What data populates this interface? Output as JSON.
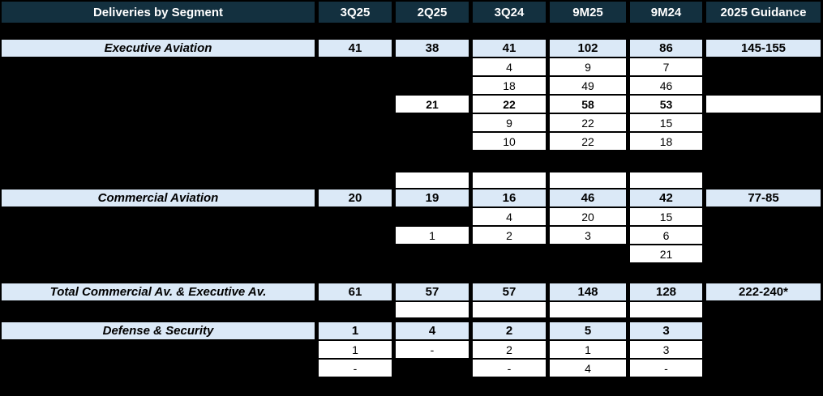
{
  "palette": {
    "page_background": "#000000",
    "header_background": "#13303F",
    "header_text": "#FFFFFF",
    "section_row_background": "#DBE9F7",
    "detail_cell_background": "#FFFFFF",
    "cell_text": "#000000"
  },
  "rows": {
    "header": {
      "c0": "Deliveries by Segment",
      "c1": "3Q25",
      "c2": "2Q25",
      "c3": "3Q24",
      "c4": "9M25",
      "c5": "9M24",
      "c6": "2025 Guidance"
    },
    "executive": {
      "c0": "Executive Aviation",
      "c1": "41",
      "c2": "38",
      "c3": "41",
      "c4": "102",
      "c5": "86",
      "c6": "145-155"
    },
    "exec_r1": {
      "c3": "4",
      "c4": "9",
      "c5": "7"
    },
    "exec_r2": {
      "c3": "18",
      "c4": "49",
      "c5": "46"
    },
    "exec_r3": {
      "c2": "21",
      "c3": "22",
      "c4": "58",
      "c5": "53",
      "c6": ""
    },
    "exec_r4": {
      "c3": "9",
      "c4": "22",
      "c5": "15"
    },
    "exec_r5": {
      "c3": "10",
      "c4": "22",
      "c5": "18"
    },
    "pre_commercial_empty": {
      "c2": "",
      "c3": "",
      "c4": "",
      "c5": ""
    },
    "commercial": {
      "c0": "Commercial Aviation",
      "c1": "20",
      "c2": "19",
      "c3": "16",
      "c4": "46",
      "c5": "42",
      "c6": "77-85"
    },
    "comm_r1": {
      "c3": "4",
      "c4": "20",
      "c5": "15"
    },
    "comm_r2": {
      "c2": "1",
      "c3": "2",
      "c4": "3",
      "c5": "6"
    },
    "comm_r3": {
      "c5": "21"
    },
    "total": {
      "c0": "Total Commercial Av. & Executive Av.",
      "c1": "61",
      "c2": "57",
      "c3": "57",
      "c4": "148",
      "c5": "128",
      "c6": "222-240*"
    },
    "post_total_empty": {
      "c2": "",
      "c3": "",
      "c4": "",
      "c5": ""
    },
    "defense": {
      "c0": "Defense & Security",
      "c1": "1",
      "c2": "4",
      "c3": "2",
      "c4": "5",
      "c5": "3"
    },
    "def_r1": {
      "c1": "1",
      "c2": "-",
      "c3": "2",
      "c4": "1",
      "c5": "3"
    },
    "def_r2": {
      "c1": "-",
      "c3": "-",
      "c4": "4",
      "c5": "-"
    }
  },
  "chart_data": {
    "type": "table",
    "title": "Deliveries by Segment",
    "columns": [
      "Deliveries by Segment",
      "3Q25",
      "2Q25",
      "3Q24",
      "9M25",
      "9M24",
      "2025 Guidance"
    ],
    "rows": [
      [
        "Executive Aviation",
        "41",
        "38",
        "41",
        "102",
        "86",
        "145-155"
      ],
      [
        "",
        null,
        null,
        "4",
        "9",
        "7",
        null
      ],
      [
        "",
        null,
        null,
        "18",
        "49",
        "46",
        null
      ],
      [
        "",
        null,
        "21",
        "22",
        "58",
        "53",
        ""
      ],
      [
        "",
        null,
        null,
        "9",
        "22",
        "15",
        null
      ],
      [
        "",
        null,
        null,
        "10",
        "22",
        "18",
        null
      ],
      [
        "",
        null,
        "",
        "",
        "",
        "",
        null
      ],
      [
        "Commercial Aviation",
        "20",
        "19",
        "16",
        "46",
        "42",
        "77-85"
      ],
      [
        "",
        null,
        null,
        "4",
        "20",
        "15",
        null
      ],
      [
        "",
        null,
        "1",
        "2",
        "3",
        "6",
        null
      ],
      [
        "",
        null,
        null,
        null,
        null,
        "21",
        null
      ],
      [
        "Total Commercial Av. & Executive Av.",
        "61",
        "57",
        "57",
        "148",
        "128",
        "222-240*"
      ],
      [
        "",
        null,
        "",
        "",
        "",
        "",
        null
      ],
      [
        "Defense & Security",
        "1",
        "4",
        "2",
        "5",
        "3",
        null
      ],
      [
        "",
        "1",
        "-",
        "2",
        "1",
        "3",
        null
      ],
      [
        "",
        "-",
        null,
        "-",
        "4",
        "-",
        null
      ]
    ],
    "layout": {
      "background": "black",
      "section_rows_highlighted": true,
      "values_centered": true
    }
  }
}
